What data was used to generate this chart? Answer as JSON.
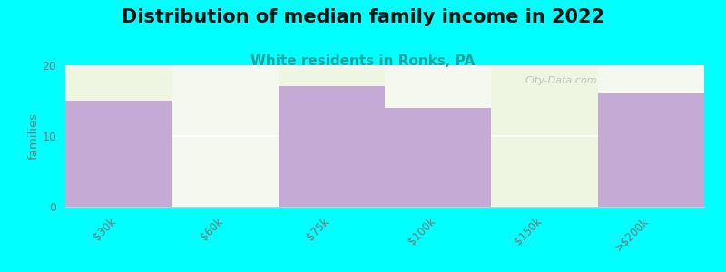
{
  "title": "Distribution of median family income in 2022",
  "subtitle": "White residents in Ronks, PA",
  "ylabel": "families",
  "categories": [
    "$30k",
    "$60k",
    "$75k",
    "$100k",
    "$150k",
    ">$200k"
  ],
  "values": [
    15,
    0,
    17,
    14,
    0,
    16
  ],
  "bar_color": "#c4aad4",
  "background_color": "#00ffff",
  "plot_bg_colors": [
    "#eef5e0",
    "#f5f8ee",
    "#eef5e0",
    "#f5f8ee",
    "#eef5e0",
    "#f5f8ee"
  ],
  "bar_width": 1.0,
  "ylim": [
    0,
    20
  ],
  "yticks": [
    0,
    10,
    20
  ],
  "title_fontsize": 15,
  "subtitle_fontsize": 11,
  "subtitle_color": "#20a0a0",
  "ylabel_color": "#777777",
  "tick_label_color": "#777777",
  "watermark": "City-Data.com",
  "grid_color": "#ffffff",
  "axis_color": "#cccccc"
}
